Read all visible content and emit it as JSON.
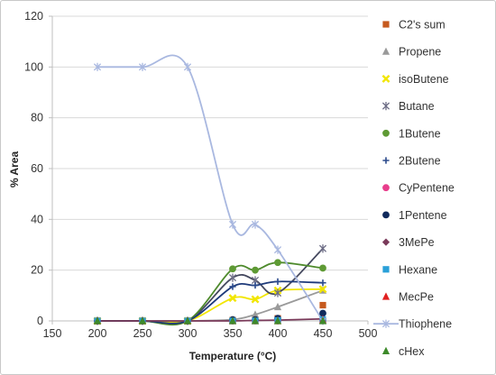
{
  "chart_data": {
    "type": "scatter",
    "title": "",
    "xlabel": "Temperature (°C)",
    "ylabel": "% Area",
    "xlim": [
      150,
      500
    ],
    "ylim": [
      0,
      120
    ],
    "xticks": [
      150,
      200,
      250,
      300,
      350,
      400,
      450,
      500
    ],
    "yticks": [
      0,
      20,
      40,
      60,
      80,
      100,
      120
    ],
    "grid": "horizontal",
    "legend": "right",
    "series": [
      {
        "name": "C2's sum",
        "marker": "square",
        "color": "#c65a1e",
        "points": [
          [
            200,
            0
          ],
          [
            250,
            0
          ],
          [
            300,
            0
          ],
          [
            350,
            0.3
          ],
          [
            375,
            0.5
          ],
          [
            400,
            1
          ],
          [
            450,
            6.2
          ]
        ]
      },
      {
        "name": "Propene",
        "marker": "triangle",
        "color": "#9a9a9a",
        "trend": "#9a9a9a",
        "points": [
          [
            200,
            0
          ],
          [
            250,
            0
          ],
          [
            300,
            0
          ],
          [
            350,
            0.5
          ],
          [
            375,
            2.5
          ],
          [
            400,
            5.5
          ],
          [
            450,
            12
          ]
        ]
      },
      {
        "name": "isoButene",
        "marker": "x",
        "color": "#f2e600",
        "trend": "#f2e600",
        "points": [
          [
            200,
            0
          ],
          [
            250,
            0
          ],
          [
            300,
            0
          ],
          [
            350,
            9
          ],
          [
            375,
            8.5
          ],
          [
            400,
            12
          ],
          [
            450,
            12.5
          ]
        ]
      },
      {
        "name": "Butane",
        "marker": "asterisk",
        "color": "#6d6d86",
        "trend": "#44485e",
        "points": [
          [
            200,
            0
          ],
          [
            250,
            0
          ],
          [
            300,
            0
          ],
          [
            350,
            17
          ],
          [
            375,
            16
          ],
          [
            400,
            11
          ],
          [
            450,
            28.5
          ]
        ]
      },
      {
        "name": "1Butene",
        "marker": "circle",
        "color": "#5e9a34",
        "trend": "#4e8a2c",
        "points": [
          [
            200,
            0
          ],
          [
            250,
            0
          ],
          [
            300,
            0
          ],
          [
            350,
            20.5
          ],
          [
            375,
            20
          ],
          [
            400,
            23
          ],
          [
            450,
            20.8
          ]
        ]
      },
      {
        "name": "2Butene",
        "marker": "plus",
        "color": "#2b4a8c",
        "trend": "#1e3a7a",
        "points": [
          [
            200,
            0
          ],
          [
            250,
            0
          ],
          [
            300,
            0
          ],
          [
            350,
            13.5
          ],
          [
            375,
            14
          ],
          [
            400,
            15.5
          ],
          [
            450,
            15
          ]
        ]
      },
      {
        "name": "CyPentene",
        "marker": "circle",
        "color": "#e83e8c",
        "points": [
          [
            200,
            0
          ],
          [
            250,
            0
          ],
          [
            300,
            0
          ],
          [
            350,
            0
          ],
          [
            375,
            0
          ],
          [
            400,
            0
          ],
          [
            450,
            0
          ]
        ]
      },
      {
        "name": "1Pentene",
        "marker": "circle",
        "color": "#102a5c",
        "points": [
          [
            200,
            0
          ],
          [
            250,
            0
          ],
          [
            300,
            0
          ],
          [
            350,
            0.5
          ],
          [
            375,
            0.5
          ],
          [
            400,
            1
          ],
          [
            450,
            3
          ]
        ]
      },
      {
        "name": "3MePe",
        "marker": "diamond",
        "color": "#7a3a5a",
        "trend": "#7a3a5a",
        "points": [
          [
            200,
            0
          ],
          [
            250,
            0
          ],
          [
            300,
            0
          ],
          [
            350,
            0
          ],
          [
            375,
            0.2
          ],
          [
            400,
            0.3
          ],
          [
            450,
            0.8
          ]
        ]
      },
      {
        "name": "Hexane",
        "marker": "square",
        "color": "#2aa0d8",
        "points": [
          [
            200,
            0
          ],
          [
            250,
            0
          ],
          [
            300,
            0
          ],
          [
            350,
            0
          ],
          [
            375,
            0
          ],
          [
            400,
            0.2
          ],
          [
            450,
            0.5
          ]
        ]
      },
      {
        "name": "MecPe",
        "marker": "triangle",
        "color": "#e02020",
        "points": [
          [
            200,
            0
          ],
          [
            250,
            0
          ],
          [
            300,
            0
          ],
          [
            350,
            0
          ],
          [
            375,
            0
          ],
          [
            400,
            0
          ],
          [
            450,
            0.3
          ]
        ]
      },
      {
        "name": "Thiophene",
        "marker": "asterisk",
        "color": "#a9b8e0",
        "trend": "#a9b8e0",
        "curve": true,
        "points": [
          [
            200,
            100
          ],
          [
            250,
            100
          ],
          [
            300,
            100
          ],
          [
            350,
            38
          ],
          [
            375,
            38
          ],
          [
            400,
            28
          ],
          [
            450,
            0
          ]
        ]
      },
      {
        "name": "cHex",
        "marker": "triangle",
        "color": "#3d8a2a",
        "points": [
          [
            200,
            0
          ],
          [
            250,
            0
          ],
          [
            300,
            0
          ],
          [
            350,
            0
          ],
          [
            375,
            0
          ],
          [
            400,
            0
          ],
          [
            450,
            0
          ]
        ]
      }
    ]
  }
}
